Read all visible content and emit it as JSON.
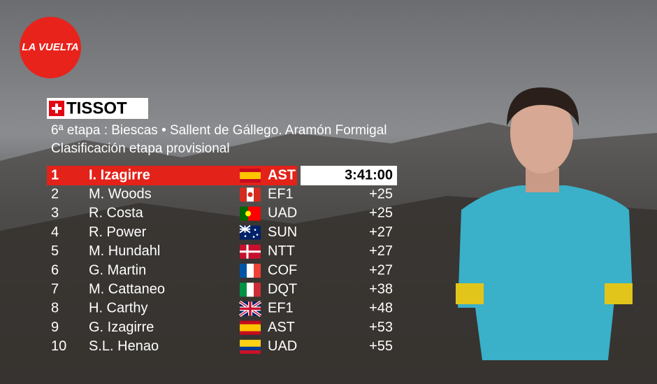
{
  "logo": "LA VUELTA",
  "sponsor": "TISSOT",
  "stage": "6ª etapa : Biescas • Sallent de Gállego. Aramón Formigal",
  "classification": "Clasificación etapa provisional",
  "table": {
    "rows": [
      [
        "1",
        "I. Izagirre",
        "AST",
        "3:41:00"
      ],
      [
        "2",
        "M. Woods",
        "EF1",
        "+25"
      ],
      [
        "3",
        "R. Costa",
        "UAD",
        "+25"
      ],
      [
        "4",
        "R. Power",
        "SUN",
        "+27"
      ],
      [
        "5",
        "M. Hundahl",
        "NTT",
        "+27"
      ],
      [
        "6",
        "G. Martin",
        "COF",
        "+27"
      ],
      [
        "7",
        "M. Cattaneo",
        "DQT",
        "+38"
      ],
      [
        "8",
        "H. Carthy",
        "EF1",
        "+48"
      ],
      [
        "9",
        "G. Izagirre",
        "AST",
        "+53"
      ],
      [
        "10",
        "S.L. Henao",
        "UAD",
        "+55"
      ]
    ]
  }
}
